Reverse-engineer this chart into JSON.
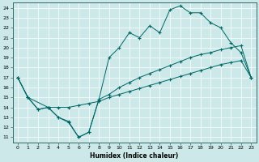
{
  "xlabel": "Humidex (Indice chaleur)",
  "bg_color": "#cce8e8",
  "grid_color": "#aacccc",
  "line_color": "#006666",
  "xlim": [
    -0.5,
    23.5
  ],
  "ylim": [
    10.5,
    24.5
  ],
  "xticks": [
    0,
    1,
    2,
    3,
    4,
    5,
    6,
    7,
    8,
    9,
    10,
    11,
    12,
    13,
    14,
    15,
    16,
    17,
    18,
    19,
    20,
    21,
    22,
    23
  ],
  "yticks": [
    11,
    12,
    13,
    14,
    15,
    16,
    17,
    18,
    19,
    20,
    21,
    22,
    23,
    24
  ],
  "line1_x": [
    0,
    1,
    2,
    3,
    4,
    5,
    6,
    7,
    8,
    9,
    10,
    11,
    12,
    13,
    14,
    15,
    16,
    17,
    18,
    19,
    20,
    21,
    22,
    23
  ],
  "line1_y": [
    17,
    15,
    13.8,
    14,
    13,
    12.5,
    11,
    11.5,
    14.8,
    19,
    20,
    21.5,
    21,
    22.2,
    21.5,
    23.8,
    24.2,
    23.5,
    23.5,
    22.5,
    22,
    20.5,
    19.5,
    17
  ],
  "line2_x": [
    0,
    1,
    3,
    4,
    5,
    6,
    7,
    8,
    9,
    10,
    11,
    12,
    13,
    14,
    15,
    16,
    17,
    18,
    19,
    20,
    21,
    22,
    23
  ],
  "line2_y": [
    17,
    15,
    14,
    14,
    14,
    14.2,
    14.4,
    14.6,
    15,
    15.3,
    15.6,
    15.9,
    16.2,
    16.5,
    16.8,
    17.1,
    17.4,
    17.7,
    18.0,
    18.3,
    18.5,
    18.7,
    17
  ],
  "line3_x": [
    0,
    1,
    2,
    3,
    4,
    5,
    6,
    7,
    8,
    9,
    10,
    11,
    12,
    13,
    14,
    15,
    16,
    17,
    18,
    19,
    20,
    21,
    22,
    23
  ],
  "line3_y": [
    17,
    15,
    13.8,
    14,
    13.0,
    12.6,
    11.0,
    11.5,
    14.8,
    15.3,
    16.0,
    16.5,
    17.0,
    17.4,
    17.8,
    18.2,
    18.6,
    19.0,
    19.3,
    19.5,
    19.8,
    20.0,
    20.2,
    17
  ]
}
